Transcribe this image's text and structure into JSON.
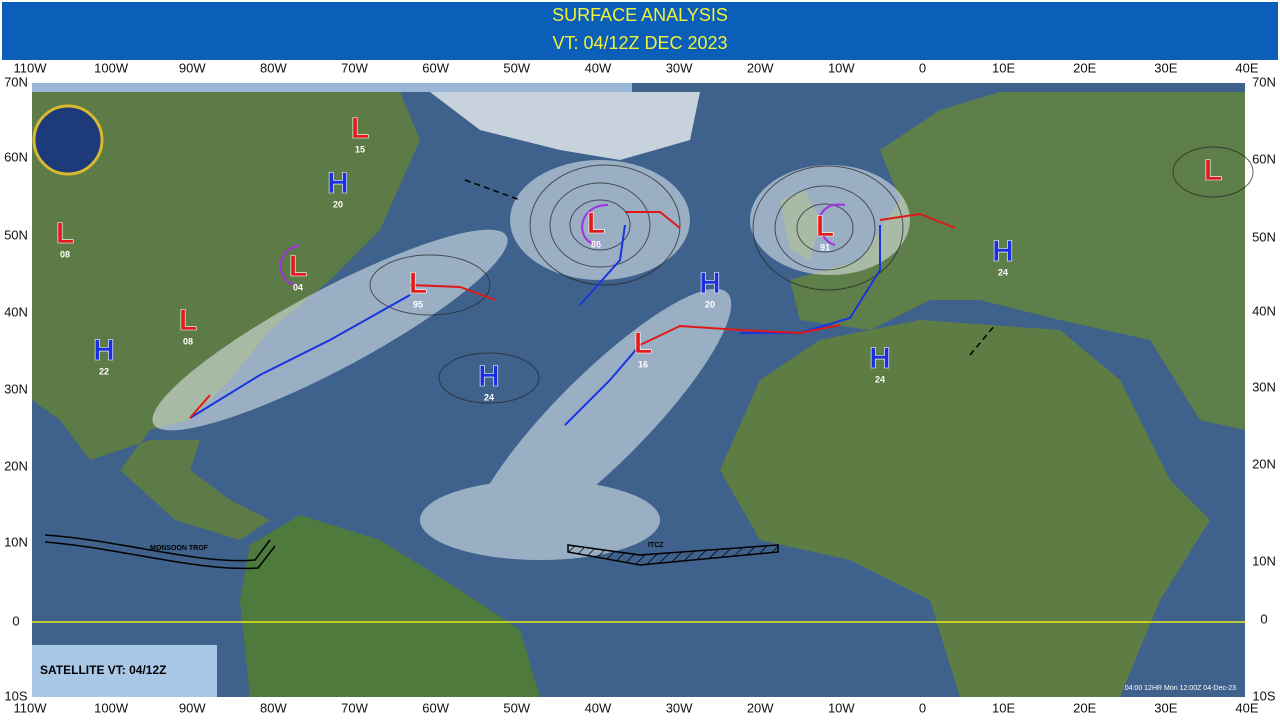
{
  "header": {
    "title": "SURFACE ANALYSIS",
    "valid_time": "VT: 04/12Z DEC 2023"
  },
  "longitude_labels": [
    "110W",
    "100W",
    "90W",
    "80W",
    "70W",
    "60W",
    "50W",
    "40W",
    "30W",
    "20W",
    "10W",
    "0",
    "10E",
    "20E",
    "30E",
    "40E"
  ],
  "latitude_labels": [
    "70N",
    "60N",
    "50N",
    "40N",
    "30N",
    "20N",
    "10N",
    "0",
    "10S"
  ],
  "systems": [
    {
      "symbol": "L",
      "pressure": "15"
    },
    {
      "symbol": "H",
      "pressure": "20"
    },
    {
      "symbol": "L",
      "pressure": "08"
    },
    {
      "symbol": "L",
      "pressure": "04"
    },
    {
      "symbol": "L",
      "pressure": "95"
    },
    {
      "symbol": "L",
      "pressure": "86"
    },
    {
      "symbol": "L",
      "pressure": "91"
    },
    {
      "symbol": "L"
    },
    {
      "symbol": "H",
      "pressure": "24"
    },
    {
      "symbol": "H",
      "pressure": "20"
    },
    {
      "symbol": "L",
      "pressure": "08"
    },
    {
      "symbol": "H",
      "pressure": "22"
    },
    {
      "symbol": "L",
      "pressure": "16"
    },
    {
      "symbol": "H",
      "pressure": "24"
    },
    {
      "symbol": "H",
      "pressure": "24"
    }
  ],
  "annotations": {
    "monsoon": "MONSOON TROF",
    "itcz": "ITCZ"
  },
  "satellite_box": "SATELLITE VT: 04/12Z",
  "timestamp": "04:00  12HR Mon 12:00Z 04-Dec-23"
}
